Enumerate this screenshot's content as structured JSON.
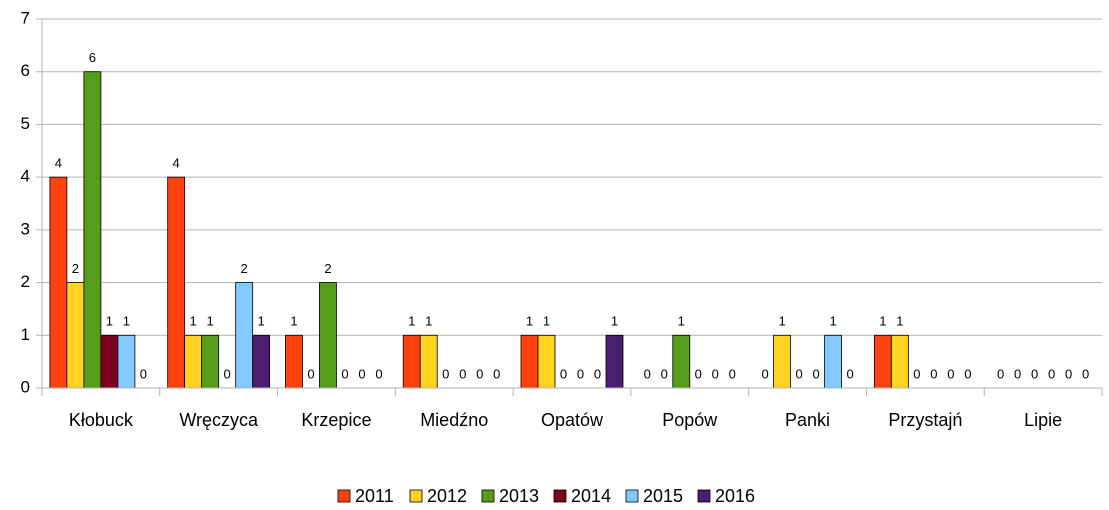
{
  "chart_data": {
    "type": "bar",
    "categories": [
      "Kłobuck",
      "Wręczyca",
      "Krzepice",
      "Miedźno",
      "Opatów",
      "Popów",
      "Panki",
      "Przystajń",
      "Lipie"
    ],
    "series": [
      {
        "name": "2011",
        "color": "#ff420e",
        "values": [
          4,
          4,
          1,
          1,
          1,
          0,
          0,
          1,
          0
        ]
      },
      {
        "name": "2012",
        "color": "#ffd320",
        "values": [
          2,
          1,
          0,
          1,
          1,
          0,
          1,
          1,
          0
        ]
      },
      {
        "name": "2013",
        "color": "#579d1c",
        "values": [
          6,
          1,
          2,
          0,
          0,
          1,
          0,
          0,
          0
        ]
      },
      {
        "name": "2014",
        "color": "#7e0021",
        "values": [
          1,
          0,
          0,
          0,
          0,
          0,
          0,
          0,
          0
        ]
      },
      {
        "name": "2015",
        "color": "#83caff",
        "values": [
          1,
          2,
          0,
          0,
          0,
          0,
          1,
          0,
          0
        ]
      },
      {
        "name": "2016",
        "color": "#4b1f6f",
        "values": [
          0,
          1,
          0,
          0,
          1,
          0,
          0,
          0,
          0
        ]
      }
    ],
    "ylim": [
      0,
      7
    ],
    "yticks": [
      0,
      1,
      2,
      3,
      4,
      5,
      6,
      7
    ],
    "grid": true,
    "legend": "bottom"
  }
}
